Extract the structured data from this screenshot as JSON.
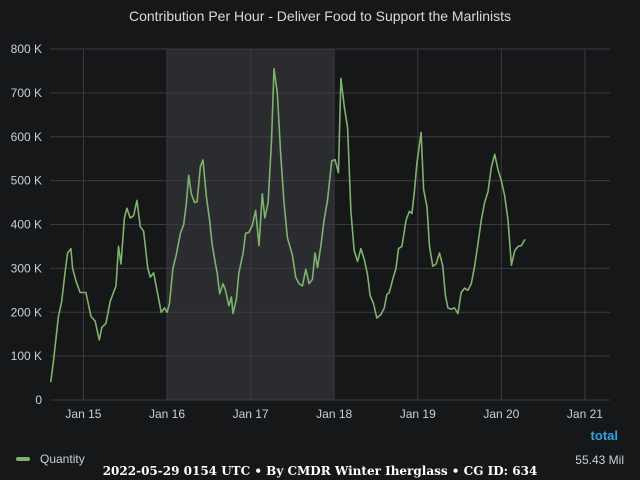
{
  "chart_data": {
    "type": "line",
    "title": "Contribution Per Hour - Deliver Food to Support the Marlinists",
    "xlabel": "",
    "ylabel": "",
    "x_unit": "days (Jan 15 = 0)",
    "x_range": [
      -0.4,
      6.3
    ],
    "x_ticks": [
      0,
      1,
      2,
      3,
      4,
      5,
      6
    ],
    "x_tick_labels": [
      "Jan 15",
      "Jan 16",
      "Jan 17",
      "Jan 18",
      "Jan 19",
      "Jan 20",
      "Jan 21"
    ],
    "ylim": [
      0,
      800000
    ],
    "y_ticks": [
      0,
      100000,
      200000,
      300000,
      400000,
      500000,
      600000,
      700000,
      800000
    ],
    "y_tick_labels": [
      "0",
      "100 K",
      "200 K",
      "300 K",
      "400 K",
      "500 K",
      "600 K",
      "700 K",
      "800 K"
    ],
    "grid": true,
    "highlight_range": [
      1,
      3
    ],
    "series": [
      {
        "name": "Quantity",
        "color": "#7eb26d",
        "points": [
          [
            -0.39,
            42000
          ],
          [
            -0.36,
            85000
          ],
          [
            -0.3,
            190000
          ],
          [
            -0.26,
            225000
          ],
          [
            -0.22,
            290000
          ],
          [
            -0.19,
            335000
          ],
          [
            -0.15,
            345000
          ],
          [
            -0.13,
            300000
          ],
          [
            -0.09,
            272000
          ],
          [
            -0.04,
            245000
          ],
          [
            0.03,
            245000
          ],
          [
            0.09,
            190000
          ],
          [
            0.14,
            180000
          ],
          [
            0.19,
            137000
          ],
          [
            0.22,
            165000
          ],
          [
            0.27,
            175000
          ],
          [
            0.32,
            225000
          ],
          [
            0.39,
            260000
          ],
          [
            0.42,
            350000
          ],
          [
            0.45,
            310000
          ],
          [
            0.49,
            415000
          ],
          [
            0.52,
            437000
          ],
          [
            0.56,
            415000
          ],
          [
            0.6,
            420000
          ],
          [
            0.64,
            455000
          ],
          [
            0.68,
            395000
          ],
          [
            0.72,
            385000
          ],
          [
            0.77,
            300000
          ],
          [
            0.8,
            280000
          ],
          [
            0.84,
            290000
          ],
          [
            0.9,
            230000
          ],
          [
            0.93,
            200000
          ],
          [
            0.97,
            210000
          ],
          [
            1.0,
            200000
          ],
          [
            1.03,
            220000
          ],
          [
            1.07,
            300000
          ],
          [
            1.11,
            330000
          ],
          [
            1.16,
            380000
          ],
          [
            1.2,
            400000
          ],
          [
            1.23,
            445000
          ],
          [
            1.26,
            512000
          ],
          [
            1.29,
            470000
          ],
          [
            1.33,
            450000
          ],
          [
            1.36,
            452000
          ],
          [
            1.4,
            532000
          ],
          [
            1.43,
            547000
          ],
          [
            1.47,
            465000
          ],
          [
            1.51,
            410000
          ],
          [
            1.54,
            355000
          ],
          [
            1.58,
            310000
          ],
          [
            1.6,
            290000
          ],
          [
            1.63,
            242000
          ],
          [
            1.67,
            265000
          ],
          [
            1.7,
            250000
          ],
          [
            1.74,
            215000
          ],
          [
            1.77,
            235000
          ],
          [
            1.79,
            197000
          ],
          [
            1.83,
            230000
          ],
          [
            1.86,
            290000
          ],
          [
            1.91,
            335000
          ],
          [
            1.94,
            380000
          ],
          [
            1.98,
            382000
          ],
          [
            2.02,
            398000
          ],
          [
            2.06,
            432000
          ],
          [
            2.1,
            352000
          ],
          [
            2.14,
            470000
          ],
          [
            2.17,
            415000
          ],
          [
            2.21,
            450000
          ],
          [
            2.25,
            590000
          ],
          [
            2.28,
            755000
          ],
          [
            2.32,
            700000
          ],
          [
            2.36,
            560000
          ],
          [
            2.4,
            450000
          ],
          [
            2.44,
            370000
          ],
          [
            2.5,
            330000
          ],
          [
            2.54,
            280000
          ],
          [
            2.58,
            265000
          ],
          [
            2.62,
            260000
          ],
          [
            2.66,
            298000
          ],
          [
            2.7,
            265000
          ],
          [
            2.74,
            275000
          ],
          [
            2.77,
            335000
          ],
          [
            2.8,
            302000
          ],
          [
            2.84,
            350000
          ],
          [
            2.88,
            410000
          ],
          [
            2.92,
            455000
          ],
          [
            2.97,
            545000
          ],
          [
            3.01,
            548000
          ],
          [
            3.05,
            518000
          ],
          [
            3.08,
            733000
          ],
          [
            3.12,
            670000
          ],
          [
            3.16,
            620000
          ],
          [
            3.2,
            430000
          ],
          [
            3.24,
            340000
          ],
          [
            3.28,
            316000
          ],
          [
            3.32,
            345000
          ],
          [
            3.36,
            320000
          ],
          [
            3.4,
            285000
          ],
          [
            3.43,
            238000
          ],
          [
            3.47,
            220000
          ],
          [
            3.51,
            187000
          ],
          [
            3.56,
            195000
          ],
          [
            3.6,
            210000
          ],
          [
            3.63,
            240000
          ],
          [
            3.66,
            245000
          ],
          [
            3.7,
            275000
          ],
          [
            3.74,
            300000
          ],
          [
            3.77,
            345000
          ],
          [
            3.81,
            350000
          ],
          [
            3.86,
            410000
          ],
          [
            3.9,
            430000
          ],
          [
            3.93,
            425000
          ],
          [
            3.96,
            475000
          ],
          [
            3.99,
            540000
          ],
          [
            4.04,
            610000
          ],
          [
            4.07,
            480000
          ],
          [
            4.11,
            440000
          ],
          [
            4.14,
            350000
          ],
          [
            4.18,
            305000
          ],
          [
            4.22,
            310000
          ],
          [
            4.26,
            335000
          ],
          [
            4.3,
            305000
          ],
          [
            4.33,
            240000
          ],
          [
            4.36,
            210000
          ],
          [
            4.4,
            207000
          ],
          [
            4.44,
            210000
          ],
          [
            4.48,
            197000
          ],
          [
            4.52,
            245000
          ],
          [
            4.56,
            255000
          ],
          [
            4.6,
            250000
          ],
          [
            4.64,
            265000
          ],
          [
            4.68,
            305000
          ],
          [
            4.72,
            355000
          ],
          [
            4.76,
            410000
          ],
          [
            4.8,
            450000
          ],
          [
            4.84,
            475000
          ],
          [
            4.88,
            530000
          ],
          [
            4.92,
            560000
          ],
          [
            4.96,
            525000
          ],
          [
            5.0,
            500000
          ],
          [
            5.04,
            465000
          ],
          [
            5.08,
            410000
          ],
          [
            5.12,
            307000
          ],
          [
            5.16,
            340000
          ],
          [
            5.2,
            350000
          ],
          [
            5.24,
            352000
          ],
          [
            5.28,
            365000
          ]
        ]
      }
    ]
  },
  "legend": {
    "series_name": "Quantity",
    "total_header": "total",
    "total_value": "55.43 Mil"
  },
  "footer": {
    "text": "2022-05-29 0154 UTC • By CMDR Winter Iherglass • CG ID: 634"
  }
}
